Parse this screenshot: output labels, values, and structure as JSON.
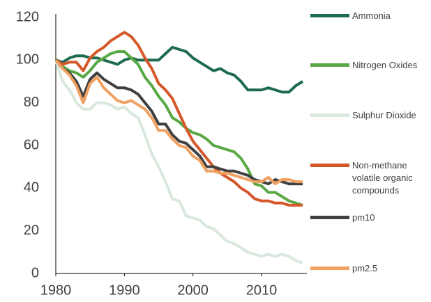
{
  "chart_data": {
    "type": "line",
    "x": [
      1980,
      1981,
      1982,
      1983,
      1984,
      1985,
      1986,
      1987,
      1988,
      1989,
      1990,
      1991,
      1992,
      1993,
      1994,
      1995,
      1996,
      1997,
      1998,
      1999,
      2000,
      2001,
      2002,
      2003,
      2004,
      2005,
      2006,
      2007,
      2008,
      2009,
      2010,
      2011,
      2012,
      2013,
      2014,
      2015,
      2016
    ],
    "xlim": [
      1980,
      2016
    ],
    "xticks": [
      1980,
      1990,
      2000,
      2010
    ],
    "ylim": [
      0,
      120
    ],
    "yticks": [
      0,
      20,
      40,
      60,
      80,
      100,
      120
    ],
    "grid": false,
    "legend": "right",
    "series": [
      {
        "name": "Ammonia",
        "color": "#1e6b4e",
        "values": [
          100,
          99,
          101,
          102,
          102,
          101,
          101,
          100,
          99,
          98,
          100,
          101,
          100,
          100,
          100,
          100,
          103,
          106,
          105,
          104,
          101,
          99,
          97,
          95,
          96,
          94,
          93,
          90,
          86,
          86,
          86,
          87,
          86,
          85,
          85,
          88,
          90
        ]
      },
      {
        "name": "Nitrogen Oxides",
        "color": "#5aa845",
        "values": [
          100,
          97,
          95,
          94,
          92,
          95,
          99,
          101,
          103,
          104,
          104,
          101,
          98,
          92,
          88,
          83,
          79,
          73,
          71,
          68,
          66,
          65,
          63,
          60,
          59,
          58,
          57,
          54,
          49,
          42,
          41,
          38,
          38,
          36,
          34,
          33,
          32
        ]
      },
      {
        "name": "Sulphur Dioxide",
        "color": "#d9e8dc",
        "values": [
          100,
          90,
          86,
          80,
          77,
          77,
          80,
          80,
          79,
          77,
          78,
          75,
          73,
          65,
          56,
          50,
          43,
          35,
          34,
          27,
          26,
          25,
          22,
          21,
          18,
          15,
          14,
          12,
          10,
          9,
          8,
          9,
          8,
          9,
          8,
          6,
          5
        ]
      },
      {
        "name": "Non-methane volatile organic compounds",
        "color": "#d4582a",
        "values": [
          100,
          98,
          99,
          99,
          95,
          101,
          104,
          106,
          109,
          111,
          113,
          111,
          107,
          101,
          96,
          89,
          86,
          82,
          75,
          68,
          62,
          58,
          54,
          50,
          47,
          45,
          43,
          40,
          38,
          35,
          34,
          34,
          33,
          33,
          32,
          32,
          32
        ]
      },
      {
        "name": "pm10",
        "color": "#404040",
        "values": [
          100,
          96,
          94,
          90,
          83,
          91,
          94,
          91,
          89,
          87,
          87,
          86,
          84,
          80,
          76,
          70,
          70,
          65,
          62,
          61,
          58,
          55,
          50,
          50,
          49,
          48,
          48,
          47,
          46,
          44,
          43,
          42,
          44,
          43,
          42,
          42,
          42
        ]
      },
      {
        "name": "pm2.5",
        "color": "#f0a060",
        "values": [
          100,
          96,
          93,
          88,
          80,
          89,
          92,
          87,
          84,
          81,
          80,
          81,
          79,
          77,
          73,
          67,
          67,
          63,
          60,
          59,
          55,
          53,
          48,
          48,
          47,
          47,
          46,
          45,
          44,
          43,
          43,
          45,
          42,
          44,
          44,
          43,
          43
        ]
      }
    ]
  }
}
